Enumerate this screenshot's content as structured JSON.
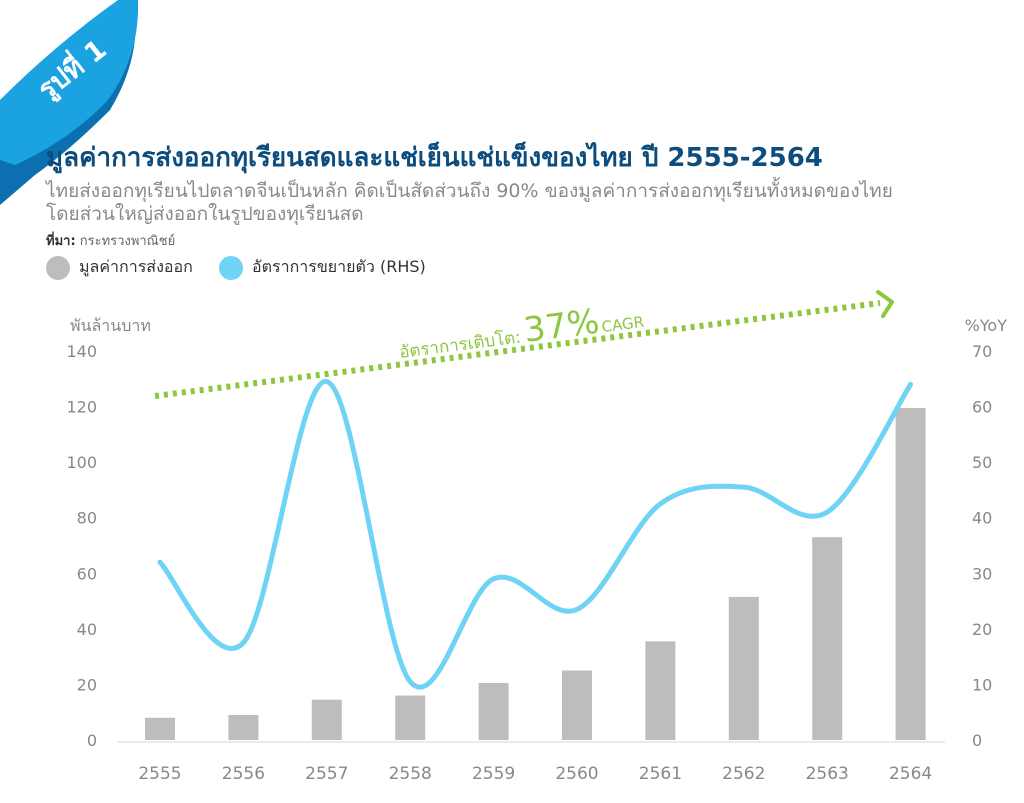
{
  "figure_label": "รูปที่ 1",
  "title": "มูลค่าการส่งออกทุเรียนสดและแช่เย็นแช่แข็งของไทย ปี 2555-2564",
  "subtitle_lines": [
    "ไทยส่งออกทุเรียนไปตลาดจีนเป็นหลัก คิดเป็นสัดส่วนถึง 90% ของมูลค่าการส่งออกทุเรียนทั้งหมดของไทย",
    "โดยส่วนใหญ่ส่งออกในรูปของทุเรียนสด"
  ],
  "source": {
    "label": "ที่มา:",
    "text": "กระทรวงพาณิชย์"
  },
  "colors": {
    "ribbon": "#1aa3e0",
    "ribbon_shadow": "#0b6fb0",
    "title": "#0d4d7e",
    "bar": "#bdbdbd",
    "line": "#6fd3f5",
    "arrow": "#8dc63f",
    "axis_text": "#888888"
  },
  "chart_data": {
    "type": "bar",
    "categories": [
      "2555",
      "2556",
      "2557",
      "2558",
      "2559",
      "2560",
      "2561",
      "2562",
      "2563",
      "2564"
    ],
    "series": [
      {
        "name": "มูลค่าการส่งออก",
        "type": "bar",
        "axis": "left",
        "values": [
          8,
          9,
          14.5,
          16,
          20.5,
          25,
          35.5,
          51.5,
          73,
          119.5
        ]
      },
      {
        "name": "อัตราการขยายตัว (RHS)",
        "type": "line",
        "axis": "right",
        "values": [
          32,
          17.5,
          64.5,
          10.5,
          29,
          23.5,
          42.5,
          45.5,
          41,
          64
        ]
      }
    ],
    "y_left": {
      "label": "พันล้านบาท",
      "range": [
        0,
        140
      ],
      "ticks": [
        0,
        20,
        40,
        60,
        80,
        100,
        120,
        140
      ]
    },
    "y_right": {
      "label": "%YoY",
      "range": [
        0,
        70
      ],
      "ticks": [
        0,
        10,
        20,
        30,
        40,
        50,
        60,
        70
      ]
    },
    "grid": false,
    "legend_placement": "top-left",
    "annotation": {
      "prefix": "อัตราการเติบโต:",
      "value": "37%",
      "suffix": "CAGR"
    }
  }
}
